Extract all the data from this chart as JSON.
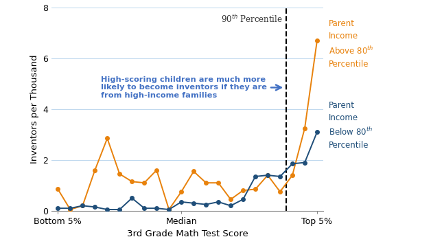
{
  "orange_x": [
    1,
    2,
    3,
    4,
    5,
    6,
    7,
    8,
    9,
    10,
    11,
    12,
    13,
    14,
    15,
    16,
    17,
    18,
    19,
    20,
    21,
    22
  ],
  "orange_y": [
    0.85,
    0.05,
    0.2,
    1.6,
    2.85,
    1.45,
    1.15,
    1.1,
    1.6,
    0.05,
    0.75,
    1.55,
    1.1,
    1.1,
    0.45,
    0.8,
    0.85,
    1.4,
    0.75,
    1.4,
    3.25,
    6.7
  ],
  "blue_x": [
    1,
    2,
    3,
    4,
    5,
    6,
    7,
    8,
    9,
    10,
    11,
    12,
    13,
    14,
    15,
    16,
    17,
    18,
    19,
    20,
    21,
    22
  ],
  "blue_y": [
    0.1,
    0.1,
    0.2,
    0.15,
    0.05,
    0.05,
    0.5,
    0.1,
    0.1,
    0.05,
    0.35,
    0.3,
    0.25,
    0.35,
    0.2,
    0.45,
    1.35,
    1.4,
    1.35,
    1.85,
    1.9,
    3.1
  ],
  "orange_color": "#E8820C",
  "blue_color": "#1F4E79",
  "annotation_color": "#4472C4",
  "vline_x": 19.5,
  "vline_label": "90",
  "xlabel": "3rd Grade Math Test Score",
  "ylabel": "Inventors per Thousand",
  "ylim": [
    0,
    8
  ],
  "yticks": [
    0,
    2,
    4,
    6,
    8
  ],
  "xtick_positions": [
    1,
    11,
    22
  ],
  "xtick_labels": [
    "Bottom 5%",
    "Median",
    "Top 5%"
  ],
  "annotation_text": "High-scoring children are much more\nlikely to become inventors if they are\nfrom high-income families",
  "orange_label": "Parent\nIncome\nAbove 80$^{th}$\nPercentile",
  "blue_label": "Parent\nIncome\nBelow 80$^{th}$\nPercentile"
}
